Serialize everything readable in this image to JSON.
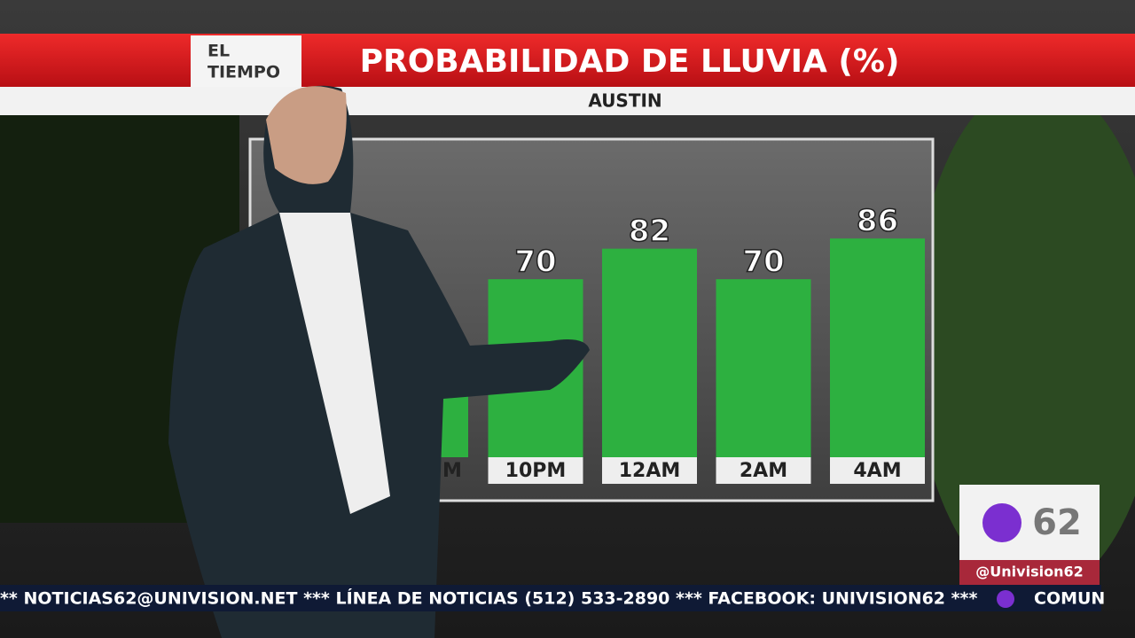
{
  "header": {
    "line1": "EL",
    "line2": "TIEMPO"
  },
  "chart_data": {
    "type": "bar",
    "title": "PROBABILIDAD DE LLUVIA (%)",
    "subtitle": "AUSTIN",
    "categories": [
      "M",
      "10PM",
      "12AM",
      "2AM",
      "4AM"
    ],
    "values": [
      null,
      70,
      82,
      70,
      86
    ],
    "color": "#2db040"
  },
  "logo": {
    "number": "62",
    "handle": "@Univision62"
  },
  "ticker": {
    "text": "** NOTICIAS62@UNIVISION.NET *** LÍNEA DE NOTICIAS (512) 533-2890 *** FACEBOOK: UNIVISION62 ***",
    "tail": "COMUN"
  }
}
